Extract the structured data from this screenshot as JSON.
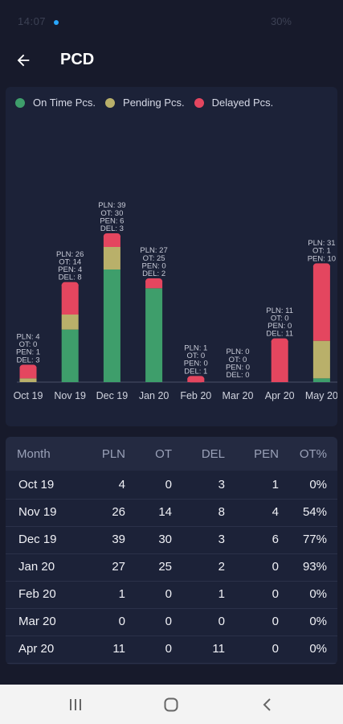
{
  "status": {
    "left": "14:07",
    "right": "30%"
  },
  "header": {
    "title": "PCD"
  },
  "legend": [
    {
      "label": "On Time Pcs.",
      "color": "#3e9e6b"
    },
    {
      "label": "Pending Pcs.",
      "color": "#b9b06a"
    },
    {
      "label": "Delayed Pcs.",
      "color": "#e4465f"
    }
  ],
  "chart_data": {
    "type": "bar",
    "stacked": true,
    "categories": [
      "Oct 19",
      "Nov 19",
      "Dec 19",
      "Jan 20",
      "Feb 20",
      "Mar 20",
      "Apr 20",
      "May 20"
    ],
    "series": [
      {
        "name": "On Time Pcs.",
        "values": [
          0,
          14,
          30,
          25,
          0,
          0,
          0,
          1
        ]
      },
      {
        "name": "Pending Pcs.",
        "values": [
          1,
          4,
          6,
          0,
          0,
          0,
          0,
          10
        ]
      },
      {
        "name": "Delayed Pcs.",
        "values": [
          3,
          8,
          3,
          2,
          1,
          0,
          11,
          20
        ]
      }
    ],
    "annotations": [
      [
        "PLN: 4",
        "OT: 0",
        "PEN: 1",
        "DEL: 3"
      ],
      [
        "PLN: 26",
        "OT: 14",
        "PEN: 4",
        "DEL: 8"
      ],
      [
        "PLN: 39",
        "OT: 30",
        "PEN: 6",
        "DEL: 3"
      ],
      [
        "PLN: 27",
        "OT: 25",
        "PEN: 0",
        "DEL: 2"
      ],
      [
        "PLN: 1",
        "OT: 0",
        "PEN: 0",
        "DEL: 1"
      ],
      [
        "PLN: 0",
        "OT: 0",
        "PEN: 0",
        "DEL: 0"
      ],
      [
        "PLN: 11",
        "OT: 0",
        "PEN: 0",
        "DEL: 11"
      ],
      [
        "PLN: 31",
        "OT: 1",
        "PEN: 10"
      ]
    ],
    "ylim": [
      0,
      39
    ]
  },
  "table": {
    "columns": [
      "Month",
      "PLN",
      "OT",
      "DEL",
      "PEN",
      "OT%"
    ],
    "rows": [
      [
        "Oct 19",
        "4",
        "0",
        "3",
        "1",
        "0%"
      ],
      [
        "Nov 19",
        "26",
        "14",
        "8",
        "4",
        "54%"
      ],
      [
        "Dec 19",
        "39",
        "30",
        "3",
        "6",
        "77%"
      ],
      [
        "Jan 20",
        "27",
        "25",
        "2",
        "0",
        "93%"
      ],
      [
        "Feb 20",
        "1",
        "0",
        "1",
        "0",
        "0%"
      ],
      [
        "Mar 20",
        "0",
        "0",
        "0",
        "0",
        "0%"
      ],
      [
        "Apr 20",
        "11",
        "0",
        "11",
        "0",
        "0%"
      ]
    ]
  },
  "navbar": [
    "recents-icon",
    "home-icon",
    "back-icon"
  ]
}
